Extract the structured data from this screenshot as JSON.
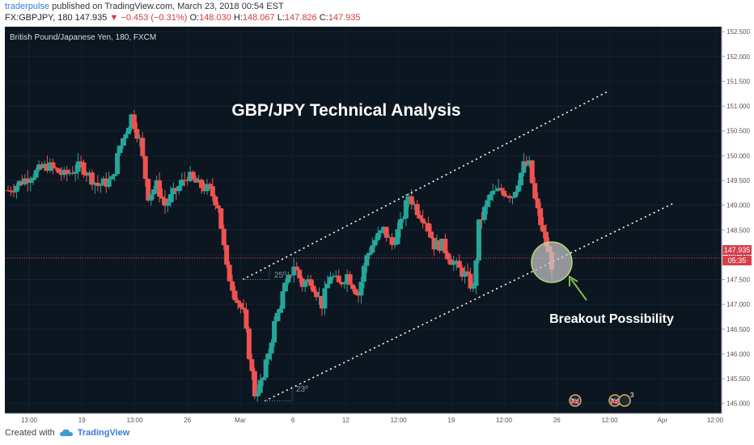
{
  "header": {
    "author": "traderpulse",
    "published_text": "published on TradingView.com, March 23, 2018 00:54 EST",
    "symbol": "FX:GBPJPY, 180",
    "last": "147.935",
    "change_arrow": "▼",
    "change": "−0.453 (−0.31%)",
    "open_label": "O:",
    "open": "148.030",
    "high_label": "H:",
    "high": "148.067",
    "low_label": "L:",
    "low": "147.826",
    "close_label": "C:",
    "close": "147.935"
  },
  "footer": {
    "created_with": "Created with",
    "brand": "TradingView"
  },
  "colors": {
    "background": "#0c1621",
    "up": "#26a69a",
    "down": "#ef5350",
    "annotation": "#ffffff",
    "arrow": "#7cbf4a",
    "circle_fill": "#c8c8c8",
    "circle_stroke": "#b5d77a",
    "price_line": "#e0525a",
    "price_badge": "#d6404a",
    "axis_text": "#b0b8c4"
  },
  "chart_data": {
    "type": "candlestick",
    "title": "GBP/JPY Technical Analysis",
    "instrument_label": "British Pound/Japanese Yen, 180, FXCM",
    "ylim": [
      144.8,
      152.6
    ],
    "y_ticks": [
      "145.000",
      "145.500",
      "146.000",
      "146.500",
      "147.000",
      "147.500",
      "148.000",
      "148.500",
      "149.000",
      "149.500",
      "150.000",
      "150.500",
      "151.000",
      "151.500",
      "152.000",
      "152.500"
    ],
    "x_ticks": [
      "13:00",
      "19",
      "13:00",
      "26",
      "Mar",
      "6",
      "12",
      "12:00",
      "19",
      "12:00",
      "26",
      "12:00",
      "Apr",
      "12:00"
    ],
    "current_price": "147.935",
    "countdown": "05:35",
    "annotations": {
      "breakout": "Breakout Possibility",
      "angle_top": "25º",
      "angle_bottom": "23º"
    },
    "event_markers": [
      "🇬🇧",
      "🇬🇧",
      "3"
    ],
    "anchors": [
      [
        0,
        149.3
      ],
      [
        8,
        149.6
      ],
      [
        14,
        149.8
      ],
      [
        20,
        149.6
      ],
      [
        26,
        149.8
      ],
      [
        32,
        149.4
      ],
      [
        37,
        149.5
      ],
      [
        40,
        150.2
      ],
      [
        44,
        150.8
      ],
      [
        47,
        150.3
      ],
      [
        50,
        149.2
      ],
      [
        53,
        149.4
      ],
      [
        56,
        149.0
      ],
      [
        60,
        149.3
      ],
      [
        64,
        149.6
      ],
      [
        68,
        149.4
      ],
      [
        72,
        149.3
      ],
      [
        75,
        149.0
      ],
      [
        78,
        147.7
      ],
      [
        81,
        147.2
      ],
      [
        84,
        146.8
      ],
      [
        88,
        145.2
      ],
      [
        91,
        145.5
      ],
      [
        95,
        146.6
      ],
      [
        98,
        147.2
      ],
      [
        102,
        147.8
      ],
      [
        105,
        147.4
      ],
      [
        108,
        147.5
      ],
      [
        112,
        147.0
      ],
      [
        115,
        147.6
      ],
      [
        118,
        147.4
      ],
      [
        121,
        147.6
      ],
      [
        125,
        147.2
      ],
      [
        128,
        148.0
      ],
      [
        131,
        148.3
      ],
      [
        134,
        148.5
      ],
      [
        137,
        148.2
      ],
      [
        140,
        148.6
      ],
      [
        143,
        149.2
      ],
      [
        146,
        148.9
      ],
      [
        149,
        148.7
      ],
      [
        152,
        148.2
      ],
      [
        155,
        148.2
      ],
      [
        158,
        147.9
      ],
      [
        161,
        147.7
      ],
      [
        163,
        147.6
      ],
      [
        166,
        147.3
      ],
      [
        168,
        148.6
      ],
      [
        172,
        149.2
      ],
      [
        176,
        149.3
      ],
      [
        180,
        149.2
      ],
      [
        184,
        149.8
      ],
      [
        186,
        149.8
      ],
      [
        188,
        149.1
      ],
      [
        191,
        148.4
      ],
      [
        194,
        147.8
      ]
    ]
  }
}
